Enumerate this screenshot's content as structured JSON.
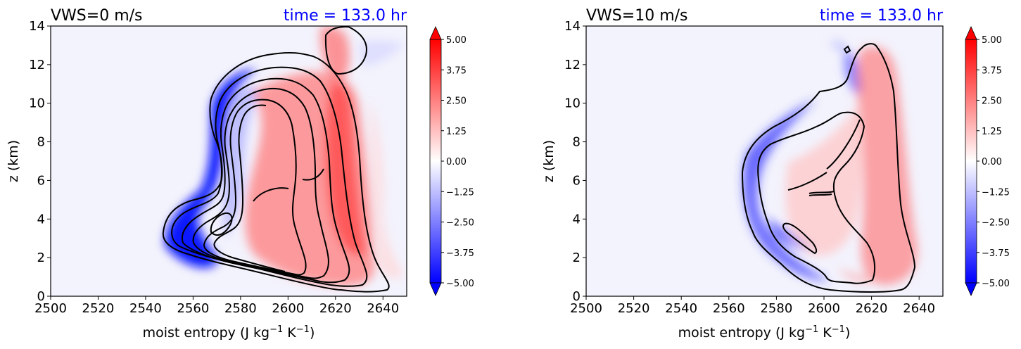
{
  "chart_data": [
    {
      "type": "heatmap",
      "title_left": "VWS=0 m/s",
      "title_right": "time = 133.0 hr",
      "xlabel": "moist entropy (J kg",
      "xlabel_sup1": "−1",
      "xlabel_mid": " K",
      "xlabel_sup2": "−1",
      "xlabel_end": ")",
      "ylabel": "z (km)",
      "xlim": [
        2500,
        2650
      ],
      "ylim": [
        0,
        14
      ],
      "xticks": [
        "2500",
        "2520",
        "2540",
        "2560",
        "2580",
        "2600",
        "2620",
        "2640"
      ],
      "yticks": [
        "0",
        "2",
        "4",
        "6",
        "8",
        "10",
        "12",
        "14"
      ]
    },
    {
      "type": "heatmap",
      "title_left": "VWS=10 m/s",
      "title_right": "time = 133.0 hr",
      "xlabel": "moist entropy (J kg",
      "xlabel_sup1": "−1",
      "xlabel_mid": " K",
      "xlabel_sup2": "−1",
      "xlabel_end": ")",
      "ylabel": "z (km)",
      "xlim": [
        2500,
        2650
      ],
      "ylim": [
        0,
        14
      ],
      "xticks": [
        "2500",
        "2520",
        "2540",
        "2560",
        "2580",
        "2600",
        "2620",
        "2640"
      ],
      "yticks": [
        "0",
        "2",
        "4",
        "6",
        "8",
        "10",
        "12",
        "14"
      ]
    }
  ],
  "colorbar": {
    "ticks": [
      "5.00",
      "3.75",
      "2.50",
      "1.25",
      "0.00",
      "−1.25",
      "−2.50",
      "−3.75",
      "−5.00"
    ],
    "min": -5,
    "max": 5,
    "colors": {
      "positive": "#ff0000",
      "negative": "#0000ff",
      "zero": "#ffffff"
    },
    "extend": "both"
  },
  "colors": {
    "title_right": "#0000ff",
    "contour": "#000000"
  }
}
